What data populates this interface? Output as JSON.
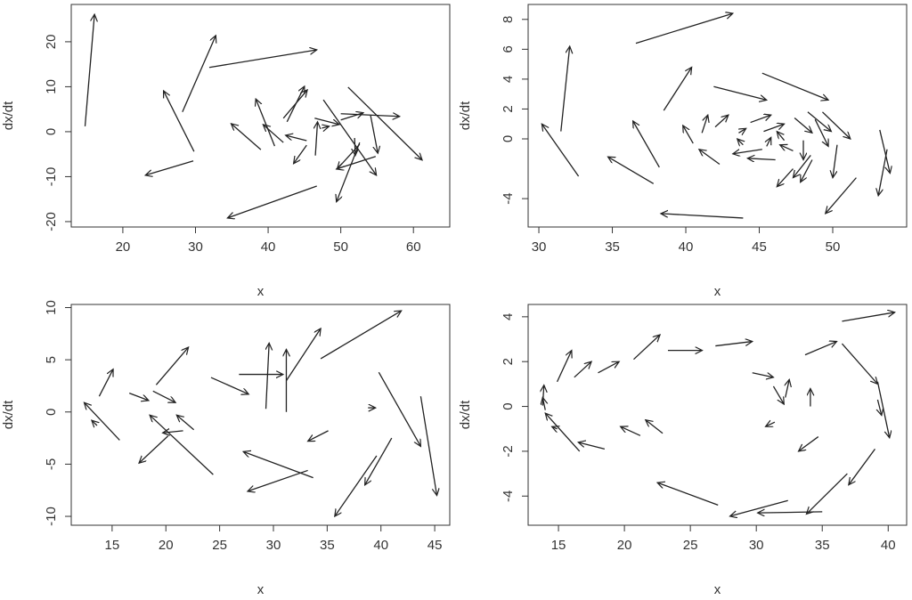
{
  "chart_data": [
    {
      "type": "quiver",
      "xlabel": "x",
      "ylabel": "dx/dt",
      "xlim": [
        12.9,
        65.0
      ],
      "ylim": [
        -21.2,
        28.3
      ],
      "xticks": [
        20,
        30,
        40,
        50,
        60
      ],
      "yticks": [
        -20,
        -10,
        0,
        10,
        20
      ],
      "x0": [
        14.8,
        29.8,
        29.7,
        28.2,
        31.9,
        46.7,
        39.0,
        40.9,
        42.1,
        42.1,
        42.6,
        45.3,
        45.3,
        46.5,
        47.4,
        47.6,
        51.0,
        46.4,
        50.0,
        50.0,
        54.1,
        52.6,
        52.6,
        54.8,
        51.9
      ],
      "y0": [
        1.2,
        -4.4,
        -6.5,
        4.4,
        14.3,
        -12.1,
        -4.0,
        -3.2,
        -2.4,
        3.0,
        2.2,
        -2.0,
        -3.0,
        -5.3,
        0.8,
        7.1,
        9.9,
        3.0,
        2.6,
        4.0,
        3.6,
        -2.4,
        -2.8,
        -5.5,
        -1.4
      ],
      "x1": [
        16.1,
        25.6,
        23.1,
        32.8,
        46.7,
        34.4,
        34.9,
        38.3,
        39.3,
        45.4,
        45.0,
        42.4,
        43.5,
        46.8,
        48.4,
        54.9,
        61.2,
        49.8,
        53.1,
        58.1,
        55.1,
        49.4,
        49.5,
        49.4,
        52.0
      ],
      "y1": [
        26.1,
        9.1,
        -9.7,
        21.4,
        18.2,
        -19.2,
        1.8,
        7.3,
        1.6,
        9.3,
        10.1,
        -0.8,
        -7.1,
        2.2,
        1.2,
        -9.7,
        -6.3,
        1.6,
        4.2,
        3.4,
        -4.8,
        -15.6,
        -8.3,
        -8.3,
        -5.3
      ]
    },
    {
      "type": "quiver",
      "xlabel": "x",
      "ylabel": "dx/dt",
      "xlim": [
        29.27,
        55.03
      ],
      "ylim": [
        -5.9,
        9.0
      ],
      "xticks": [
        30,
        35,
        40,
        45,
        50
      ],
      "yticks": [
        -4,
        0,
        2,
        4,
        6,
        8
      ],
      "x0": [
        31.5,
        32.7,
        36.6,
        38.2,
        37.8,
        38.5,
        43.9,
        41.9,
        45.2,
        51.6,
        49.3,
        53.2,
        53.7,
        40.5,
        41.1,
        42.0,
        42.3,
        44.4,
        45.3,
        48.3,
        47.4,
        48.8,
        48.0,
        47.3,
        48.6,
        50.3,
        45.2,
        46.1,
        43.6,
        45.5,
        47.3,
        48.5,
        43.9,
        46.7
      ],
      "y0": [
        0.5,
        -2.5,
        6.4,
        -1.9,
        -3.0,
        1.9,
        -5.3,
        3.5,
        4.4,
        -2.6,
        1.8,
        0.6,
        -0.7,
        -0.3,
        0.4,
        0.8,
        -1.7,
        1.1,
        0.5,
        1.8,
        1.4,
        1.3,
        -0.1,
        -2.0,
        -1.4,
        -0.4,
        -0.7,
        -1.4,
        0.4,
        -0.5,
        -0.8,
        -1.1,
        -0.4,
        -0.1
      ],
      "x1": [
        32.1,
        30.2,
        43.2,
        36.4,
        34.7,
        40.4,
        38.3,
        45.5,
        49.7,
        49.5,
        51.2,
        53.9,
        53.1,
        39.8,
        41.5,
        42.9,
        40.9,
        45.8,
        46.7,
        49.9,
        48.6,
        49.7,
        48.0,
        46.2,
        47.8,
        50.0,
        43.2,
        44.2,
        44.1,
        45.8,
        46.4,
        47.3,
        43.5,
        46.2
      ],
      "y1": [
        6.2,
        1.0,
        8.4,
        1.2,
        -1.2,
        4.8,
        -5.0,
        2.6,
        2.6,
        -5.0,
        0,
        -2.3,
        -3.8,
        0.9,
        1.6,
        1.6,
        -0.7,
        1.6,
        1.0,
        0.5,
        0.4,
        -0.5,
        -1.4,
        -3.2,
        -2.9,
        -2.6,
        -1.0,
        -1.3,
        0.7,
        0.1,
        -0.4,
        -2.6,
        0,
        0.5
      ]
    },
    {
      "type": "quiver",
      "xlabel": "x",
      "ylabel": "dx/dt",
      "xlim": [
        11.2,
        46.4
      ],
      "ylim": [
        -10.85,
        10.3
      ],
      "xticks": [
        15,
        20,
        25,
        30,
        35,
        40,
        45
      ],
      "yticks": [
        -10,
        -5,
        0,
        5,
        10
      ],
      "x0": [
        13.8,
        15.7,
        13.6,
        16.6,
        18.8,
        19.1,
        22.6,
        21.6,
        20.2,
        24.4,
        24.2,
        26.8,
        29.3,
        31.2,
        31.2,
        34.4,
        33.7,
        33.2,
        35.1,
        38.8,
        39.8,
        43.7,
        39.6,
        41.0
      ],
      "y0": [
        1.5,
        -2.7,
        -1.3,
        1.8,
        2.0,
        2.6,
        -1.7,
        -1.8,
        -2.3,
        -6.0,
        3.3,
        3.6,
        0.3,
        0,
        3.0,
        5.1,
        -6.3,
        -5.6,
        -1.8,
        0.4,
        3.8,
        1.5,
        -4.2,
        -2.5
      ],
      "x1": [
        15.1,
        12.4,
        13.1,
        18.4,
        20.9,
        22.1,
        21.0,
        19.7,
        17.5,
        18.5,
        27.7,
        30.9,
        29.6,
        31.2,
        34.4,
        41.9,
        27.2,
        27.6,
        33.2,
        39.5,
        43.7,
        45.2,
        35.7,
        38.5
      ],
      "y1": [
        4.1,
        0.9,
        -0.8,
        1.1,
        0.9,
        6.2,
        -0.3,
        -2.0,
        -4.9,
        -0.3,
        1.7,
        3.6,
        6.6,
        6.0,
        8.0,
        9.7,
        -3.8,
        -7.6,
        -2.8,
        0.4,
        -3.3,
        -8.0,
        -10.0,
        -7.0
      ]
    },
    {
      "type": "quiver",
      "xlabel": "x",
      "ylabel": "dx/dt",
      "xlim": [
        12.7,
        41.4
      ],
      "ylim": [
        -5.3,
        4.55
      ],
      "xticks": [
        15,
        20,
        25,
        30,
        35,
        40
      ],
      "yticks": [
        -4,
        -2,
        0,
        2,
        4
      ],
      "x0": [
        13.8,
        14.0,
        16.6,
        14.9,
        14.9,
        16.2,
        18.0,
        20.7,
        23.3,
        26.9,
        29.7,
        31.3,
        32.2,
        34.1,
        33.7,
        36.5,
        36.5,
        39.2,
        39.2,
        39.0,
        36.9,
        35.0,
        32.4,
        27.1,
        34.7,
        31.4,
        22.9,
        21.2,
        18.5
      ],
      "y0": [
        0.04,
        -0.16,
        -2.0,
        1.1,
        -1.0,
        1.3,
        1.5,
        2.1,
        2.5,
        2.7,
        1.5,
        0.9,
        0.4,
        0,
        2.3,
        3.8,
        2.8,
        1.1,
        0.3,
        -1.9,
        -3.0,
        -4.7,
        -4.2,
        -4.4,
        -1.35,
        -0.7,
        -1.2,
        -1.3,
        -1.9
      ],
      "x1": [
        13.9,
        13.8,
        14.0,
        16.0,
        14.5,
        17.5,
        19.6,
        22.7,
        25.9,
        29.7,
        31.3,
        32.1,
        32.5,
        34.1,
        36.1,
        40.5,
        39.2,
        40.1,
        39.5,
        37.0,
        33.8,
        30.1,
        28.0,
        22.5,
        33.2,
        30.7,
        21.6,
        19.7,
        16.5
      ],
      "y1": [
        0.95,
        0.4,
        -0.3,
        2.5,
        -0.9,
        2.0,
        2.0,
        3.2,
        2.5,
        2.9,
        1.3,
        0.1,
        1.2,
        0.8,
        2.9,
        4.2,
        1.0,
        -1.4,
        -0.4,
        -3.5,
        -4.8,
        -4.75,
        -4.9,
        -3.4,
        -2.0,
        -0.9,
        -0.6,
        -0.9,
        -1.6
      ]
    }
  ]
}
